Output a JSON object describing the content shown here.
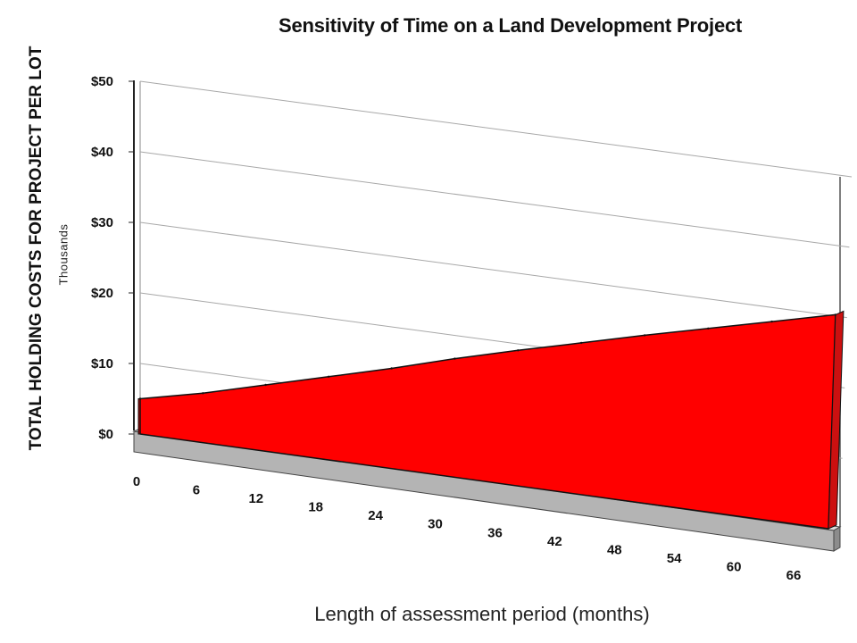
{
  "chart_data": {
    "type": "area",
    "title": "Sensitivity of Time on a Land Development Project",
    "ylabel": "TOTAL HOLDING COSTS FOR PROJECT PER LOT",
    "yunit": "Thousands",
    "xlabel": "Length of assessment period (months)",
    "ylim": [
      0,
      50
    ],
    "yticks": [
      "$0",
      "$10",
      "$20",
      "$30",
      "$40",
      "$50"
    ],
    "ytick_values": [
      0,
      10,
      20,
      30,
      40,
      50
    ],
    "categories": [
      "0",
      "6",
      "12",
      "18",
      "24",
      "30",
      "36",
      "42",
      "48",
      "54",
      "60",
      "66"
    ],
    "x": [
      0,
      6,
      12,
      18,
      24,
      30,
      36,
      42,
      48,
      54,
      60,
      66
    ],
    "values": [
      5.0,
      7.0,
      9.4,
      11.8,
      14.2,
      16.8,
      19.2,
      21.5,
      23.8,
      26.0,
      28.2,
      30.4
    ],
    "series_color": "#ff0000",
    "series_side_color": "#cc1010",
    "floor_color": "#b4b4b4",
    "grid": true,
    "legend": "none",
    "style": "3d-perspective"
  }
}
